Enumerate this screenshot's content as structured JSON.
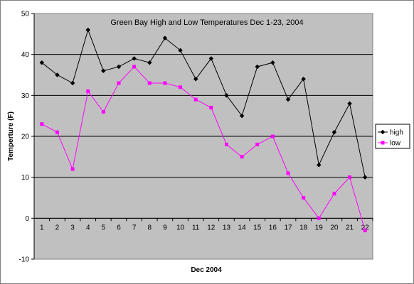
{
  "chart_data": {
    "type": "line",
    "title": "Green Bay High and Low Temperatures Dec 1-23, 2004",
    "xlabel": "Dec 2004",
    "ylabel": "Temperture (F)",
    "categories": [
      "1",
      "2",
      "3",
      "4",
      "5",
      "6",
      "7",
      "8",
      "9",
      "10",
      "11",
      "12",
      "13",
      "14",
      "15",
      "16",
      "17",
      "18",
      "19",
      "20",
      "21",
      "22"
    ],
    "ylim": [
      -10,
      50
    ],
    "yticks": [
      -10,
      0,
      10,
      20,
      30,
      40,
      50
    ],
    "grid": true,
    "legend_position": "right",
    "series": [
      {
        "name": "high",
        "color": "#000000",
        "marker": "diamond",
        "values": [
          38,
          35,
          33,
          46,
          36,
          37,
          39,
          38,
          44,
          41,
          34,
          39,
          30,
          25,
          37,
          38,
          29,
          34,
          13,
          21,
          28,
          10
        ]
      },
      {
        "name": "low",
        "color": "#ff00ff",
        "marker": "square",
        "values": [
          23,
          21,
          12,
          31,
          26,
          33,
          37,
          33,
          33,
          32,
          29,
          27,
          18,
          15,
          18,
          20,
          11,
          5,
          0,
          6,
          10,
          -3
        ]
      }
    ]
  }
}
